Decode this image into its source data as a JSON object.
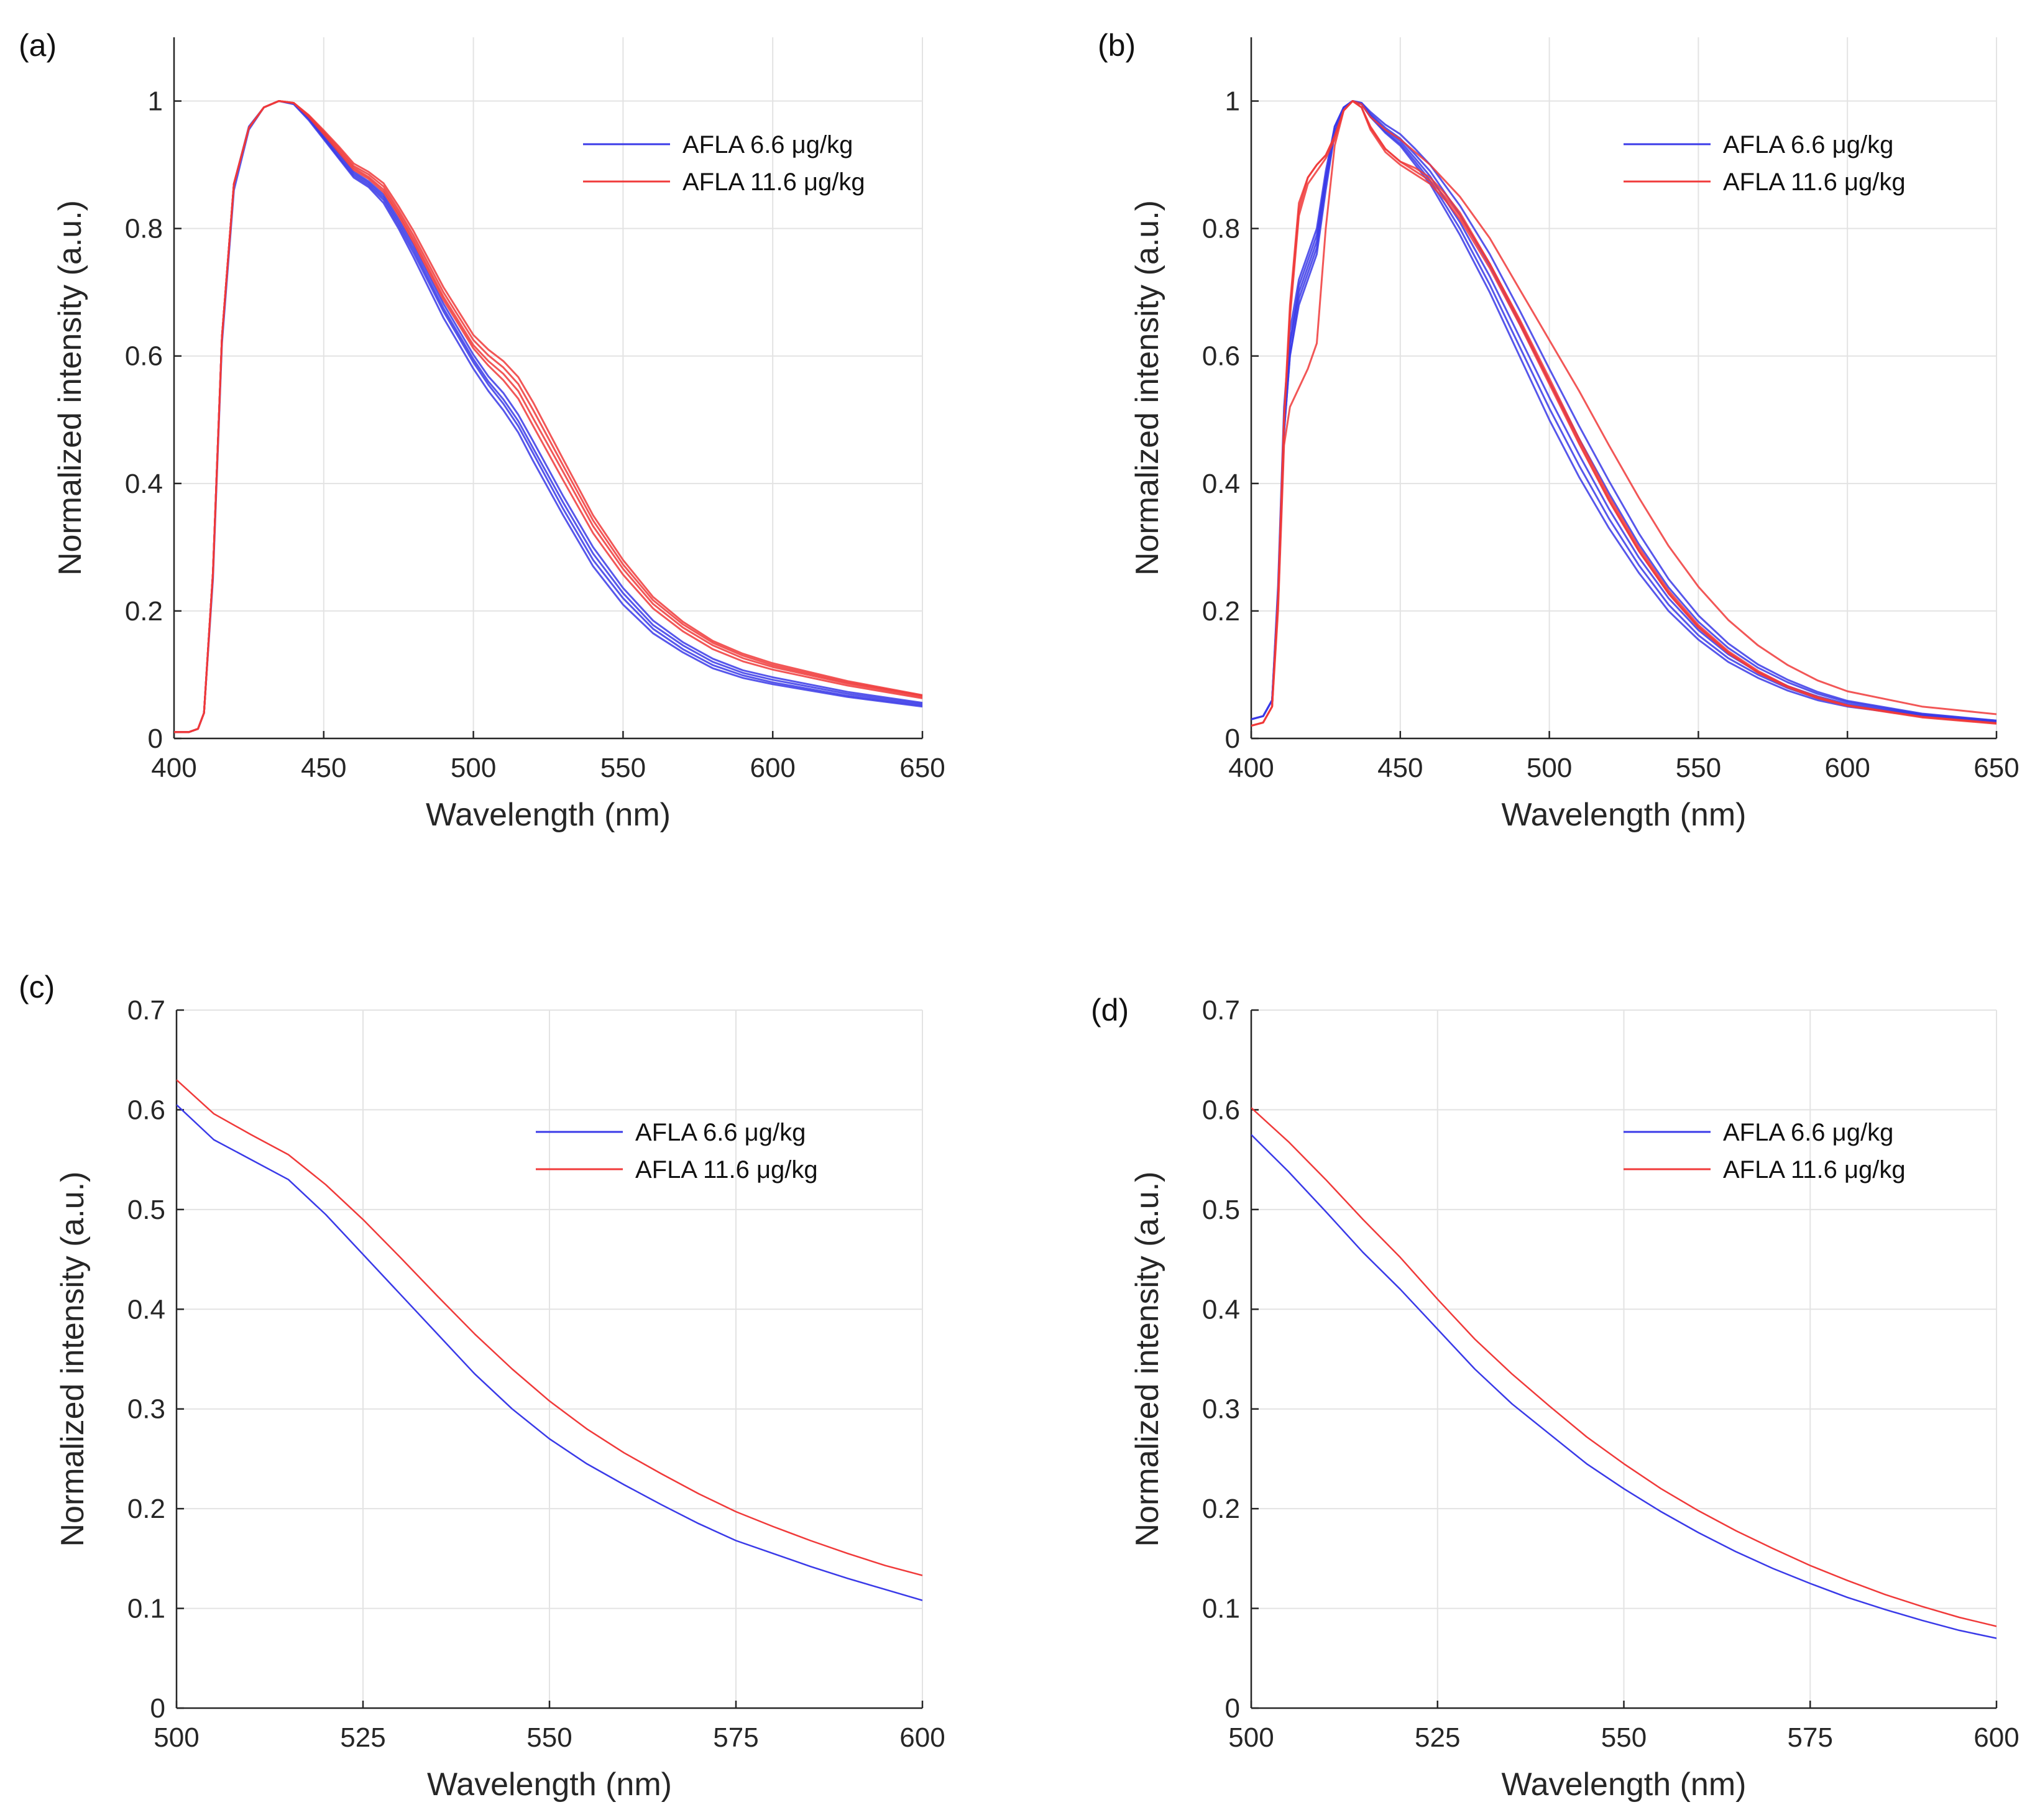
{
  "figure": {
    "description_text": ""
  },
  "colors": {
    "low": "#3a3ae8",
    "high": "#f03a3a",
    "low_bold": "#1c1cd6",
    "high_bold": "#e31a1a",
    "grid": "#e3e3e3",
    "axis": "#262626"
  },
  "legend": {
    "low_label": "AFLA 6.6 μg/kg",
    "high_label": "AFLA 11.6 μg/kg"
  },
  "chart_data": [
    {
      "id": "a",
      "panel_label": "(a)",
      "type": "line",
      "xlabel": "Wavelength (nm)",
      "ylabel": "Normalized intensity (a.u.)",
      "xlim": [
        400,
        650
      ],
      "ylim": [
        0,
        1.1
      ],
      "xticks": [
        400,
        450,
        500,
        550,
        600,
        650
      ],
      "yticks": [
        0,
        0.2,
        0.4,
        0.6,
        0.8,
        1
      ],
      "ytick_labels": [
        "0",
        "0.2",
        "0.4",
        "0.6",
        "0.8",
        "1"
      ],
      "legend_position": "top-right",
      "grid": true,
      "x": [
        400,
        405,
        408,
        410,
        413,
        416,
        420,
        425,
        430,
        435,
        440,
        445,
        450,
        455,
        460,
        465,
        470,
        475,
        480,
        490,
        500,
        505,
        510,
        515,
        520,
        530,
        540,
        550,
        560,
        570,
        580,
        590,
        600,
        625,
        650
      ],
      "series": [
        {
          "name": "AFLA 6.6 μg/kg",
          "group": "low",
          "values": [
            0.01,
            0.01,
            0.015,
            0.04,
            0.25,
            0.62,
            0.86,
            0.955,
            0.99,
            1.0,
            0.995,
            0.97,
            0.94,
            0.91,
            0.88,
            0.865,
            0.84,
            0.8,
            0.755,
            0.66,
            0.58,
            0.545,
            0.515,
            0.48,
            0.435,
            0.35,
            0.27,
            0.21,
            0.165,
            0.135,
            0.11,
            0.095,
            0.085,
            0.065,
            0.05
          ]
        },
        {
          "name": "AFLA 6.6 μg/kg",
          "group": "low",
          "values": [
            0.01,
            0.01,
            0.015,
            0.04,
            0.26,
            0.63,
            0.87,
            0.96,
            0.99,
            1.0,
            0.996,
            0.972,
            0.942,
            0.912,
            0.883,
            0.868,
            0.845,
            0.805,
            0.762,
            0.67,
            0.59,
            0.555,
            0.525,
            0.49,
            0.447,
            0.36,
            0.28,
            0.22,
            0.172,
            0.14,
            0.115,
            0.099,
            0.088,
            0.067,
            0.052
          ]
        },
        {
          "name": "AFLA 6.6 μg/kg",
          "group": "low",
          "values": [
            0.01,
            0.01,
            0.015,
            0.04,
            0.26,
            0.63,
            0.87,
            0.958,
            0.99,
            1.0,
            0.996,
            0.973,
            0.944,
            0.915,
            0.886,
            0.871,
            0.849,
            0.81,
            0.768,
            0.675,
            0.595,
            0.56,
            0.532,
            0.498,
            0.455,
            0.37,
            0.29,
            0.228,
            0.178,
            0.146,
            0.12,
            0.103,
            0.092,
            0.07,
            0.054
          ]
        },
        {
          "name": "AFLA 6.6 μg/kg",
          "group": "low",
          "values": [
            0.01,
            0.01,
            0.015,
            0.04,
            0.26,
            0.63,
            0.87,
            0.958,
            0.99,
            1.0,
            0.996,
            0.974,
            0.946,
            0.918,
            0.889,
            0.874,
            0.853,
            0.815,
            0.774,
            0.682,
            0.602,
            0.568,
            0.542,
            0.508,
            0.466,
            0.38,
            0.3,
            0.236,
            0.185,
            0.151,
            0.125,
            0.107,
            0.096,
            0.073,
            0.056
          ]
        },
        {
          "name": "AFLA 11.6 μg/kg",
          "group": "high",
          "values": [
            0.01,
            0.01,
            0.015,
            0.04,
            0.26,
            0.63,
            0.87,
            0.958,
            0.99,
            1.0,
            0.997,
            0.975,
            0.948,
            0.92,
            0.892,
            0.878,
            0.857,
            0.82,
            0.778,
            0.688,
            0.612,
            0.585,
            0.562,
            0.533,
            0.49,
            0.405,
            0.322,
            0.257,
            0.204,
            0.168,
            0.14,
            0.121,
            0.108,
            0.083,
            0.063
          ]
        },
        {
          "name": "AFLA 11.6 μg/kg",
          "group": "high",
          "values": [
            0.01,
            0.01,
            0.015,
            0.04,
            0.26,
            0.63,
            0.87,
            0.958,
            0.99,
            1.0,
            0.997,
            0.976,
            0.95,
            0.923,
            0.895,
            0.881,
            0.861,
            0.824,
            0.783,
            0.693,
            0.617,
            0.592,
            0.572,
            0.545,
            0.502,
            0.418,
            0.333,
            0.266,
            0.211,
            0.174,
            0.146,
            0.126,
            0.112,
            0.086,
            0.065
          ]
        },
        {
          "name": "AFLA 11.6 μg/kg",
          "group": "high",
          "values": [
            0.01,
            0.01,
            0.015,
            0.04,
            0.26,
            0.63,
            0.87,
            0.958,
            0.99,
            1.0,
            0.997,
            0.977,
            0.952,
            0.926,
            0.898,
            0.885,
            0.866,
            0.829,
            0.789,
            0.7,
            0.625,
            0.601,
            0.582,
            0.556,
            0.515,
            0.428,
            0.342,
            0.273,
            0.217,
            0.179,
            0.15,
            0.13,
            0.115,
            0.088,
            0.067
          ]
        },
        {
          "name": "AFLA 11.6 μg/kg",
          "group": "high",
          "values": [
            0.01,
            0.01,
            0.015,
            0.04,
            0.26,
            0.63,
            0.87,
            0.958,
            0.99,
            1.0,
            0.997,
            0.978,
            0.954,
            0.929,
            0.902,
            0.889,
            0.871,
            0.835,
            0.796,
            0.708,
            0.633,
            0.61,
            0.592,
            0.567,
            0.527,
            0.438,
            0.35,
            0.28,
            0.222,
            0.183,
            0.153,
            0.133,
            0.118,
            0.09,
            0.068
          ]
        }
      ]
    },
    {
      "id": "b",
      "panel_label": "(b)",
      "type": "line",
      "xlabel": "Wavelength (nm)",
      "ylabel": "Normalized intensity (a.u.)",
      "xlim": [
        400,
        650
      ],
      "ylim": [
        0,
        1.1
      ],
      "xticks": [
        400,
        450,
        500,
        550,
        600,
        650
      ],
      "yticks": [
        0,
        0.2,
        0.4,
        0.6,
        0.8,
        1
      ],
      "ytick_labels": [
        "0",
        "0.2",
        "0.4",
        "0.6",
        "0.8",
        "1"
      ],
      "legend_position": "top-right",
      "grid": true,
      "x": [
        400,
        404,
        407,
        409,
        411,
        413,
        416,
        419,
        422,
        425,
        428,
        431,
        434,
        437,
        440,
        445,
        450,
        455,
        460,
        465,
        470,
        480,
        490,
        500,
        510,
        520,
        530,
        540,
        550,
        560,
        570,
        580,
        590,
        600,
        625,
        650
      ],
      "series": [
        {
          "name": "AFLA 6.6 μg/kg",
          "group": "low",
          "values": [
            0.03,
            0.035,
            0.06,
            0.22,
            0.48,
            0.6,
            0.68,
            0.72,
            0.76,
            0.86,
            0.95,
            0.99,
            1.0,
            0.995,
            0.975,
            0.95,
            0.93,
            0.9,
            0.87,
            0.83,
            0.79,
            0.7,
            0.6,
            0.5,
            0.41,
            0.33,
            0.26,
            0.2,
            0.155,
            0.12,
            0.095,
            0.075,
            0.06,
            0.05,
            0.035,
            0.025
          ]
        },
        {
          "name": "AFLA 6.6 μg/kg",
          "group": "low",
          "values": [
            0.03,
            0.035,
            0.06,
            0.22,
            0.48,
            0.6,
            0.69,
            0.73,
            0.77,
            0.87,
            0.95,
            0.99,
            1.0,
            0.995,
            0.976,
            0.952,
            0.933,
            0.905,
            0.875,
            0.838,
            0.8,
            0.712,
            0.615,
            0.518,
            0.428,
            0.345,
            0.272,
            0.21,
            0.162,
            0.126,
            0.1,
            0.079,
            0.063,
            0.052,
            0.036,
            0.026
          ]
        },
        {
          "name": "AFLA 6.6 μg/kg",
          "group": "low",
          "values": [
            0.03,
            0.035,
            0.06,
            0.23,
            0.5,
            0.62,
            0.7,
            0.74,
            0.78,
            0.88,
            0.96,
            0.99,
            1.0,
            0.996,
            0.978,
            0.955,
            0.937,
            0.91,
            0.882,
            0.846,
            0.81,
            0.725,
            0.63,
            0.535,
            0.445,
            0.36,
            0.284,
            0.22,
            0.17,
            0.132,
            0.104,
            0.082,
            0.066,
            0.054,
            0.037,
            0.027
          ]
        },
        {
          "name": "AFLA 6.6 μg/kg",
          "group": "low",
          "values": [
            0.03,
            0.035,
            0.06,
            0.23,
            0.5,
            0.62,
            0.71,
            0.75,
            0.79,
            0.88,
            0.96,
            0.99,
            1.0,
            0.997,
            0.98,
            0.958,
            0.941,
            0.916,
            0.89,
            0.856,
            0.822,
            0.742,
            0.652,
            0.56,
            0.47,
            0.385,
            0.305,
            0.237,
            0.183,
            0.142,
            0.111,
            0.088,
            0.07,
            0.057,
            0.038,
            0.028
          ]
        },
        {
          "name": "AFLA 6.6 μg/kg",
          "group": "low",
          "values": [
            0.03,
            0.035,
            0.06,
            0.24,
            0.52,
            0.64,
            0.72,
            0.76,
            0.8,
            0.89,
            0.96,
            0.99,
            1.0,
            0.997,
            0.983,
            0.963,
            0.948,
            0.925,
            0.9,
            0.868,
            0.836,
            0.76,
            0.672,
            0.58,
            0.49,
            0.404,
            0.322,
            0.25,
            0.193,
            0.149,
            0.116,
            0.092,
            0.073,
            0.059,
            0.039,
            0.028
          ]
        },
        {
          "name": "AFLA 11.6 μg/kg",
          "group": "high",
          "values": [
            0.02,
            0.025,
            0.05,
            0.2,
            0.46,
            0.52,
            0.55,
            0.58,
            0.62,
            0.8,
            0.93,
            0.985,
            1.0,
            0.99,
            0.96,
            0.925,
            0.905,
            0.895,
            0.88,
            0.855,
            0.825,
            0.745,
            0.655,
            0.56,
            0.465,
            0.375,
            0.295,
            0.228,
            0.175,
            0.135,
            0.104,
            0.081,
            0.064,
            0.052,
            0.034,
            0.024
          ]
        },
        {
          "name": "AFLA 11.6 μg/kg",
          "group": "high",
          "values": [
            0.02,
            0.025,
            0.05,
            0.22,
            0.5,
            0.66,
            0.82,
            0.87,
            0.89,
            0.91,
            0.94,
            0.985,
            1.0,
            0.99,
            0.955,
            0.92,
            0.9,
            0.885,
            0.87,
            0.845,
            0.815,
            0.738,
            0.65,
            0.556,
            0.462,
            0.373,
            0.294,
            0.227,
            0.174,
            0.134,
            0.103,
            0.08,
            0.063,
            0.051,
            0.033,
            0.023
          ]
        },
        {
          "name": "AFLA 11.6 μg/kg",
          "group": "high",
          "values": [
            0.02,
            0.025,
            0.05,
            0.22,
            0.5,
            0.68,
            0.84,
            0.88,
            0.9,
            0.915,
            0.945,
            0.985,
            1.0,
            0.99,
            0.958,
            0.925,
            0.905,
            0.89,
            0.875,
            0.85,
            0.82,
            0.745,
            0.658,
            0.565,
            0.47,
            0.38,
            0.3,
            0.232,
            0.178,
            0.137,
            0.106,
            0.082,
            0.065,
            0.052,
            0.034,
            0.024
          ]
        },
        {
          "name": "AFLA 11.6 μg/kg",
          "group": "high",
          "values": [
            0.02,
            0.025,
            0.05,
            0.22,
            0.5,
            0.67,
            0.83,
            0.88,
            0.9,
            0.915,
            0.945,
            0.985,
            1.0,
            0.995,
            0.975,
            0.955,
            0.94,
            0.92,
            0.9,
            0.875,
            0.85,
            0.785,
            0.705,
            0.625,
            0.545,
            0.46,
            0.378,
            0.302,
            0.238,
            0.186,
            0.146,
            0.115,
            0.091,
            0.074,
            0.05,
            0.038
          ]
        }
      ]
    },
    {
      "id": "c",
      "panel_label": "(c)",
      "type": "line",
      "xlabel": "Wavelength (nm)",
      "ylabel": "Normalized intensity (a.u.)",
      "xlim": [
        500,
        600
      ],
      "ylim": [
        0,
        0.7
      ],
      "xticks": [
        500,
        525,
        550,
        575,
        600
      ],
      "yticks": [
        0,
        0.1,
        0.2,
        0.3,
        0.4,
        0.5,
        0.6,
        0.7
      ],
      "ytick_labels": [
        "0",
        "0.1",
        "0.2",
        "0.3",
        "0.4",
        "0.5",
        "0.6",
        "0.7"
      ],
      "legend_position": "top-right",
      "grid": true,
      "x": [
        500,
        505,
        510,
        515,
        520,
        525,
        530,
        535,
        540,
        545,
        550,
        555,
        560,
        565,
        570,
        575,
        580,
        585,
        590,
        595,
        600
      ],
      "series": [
        {
          "name": "AFLA 6.6 μg/kg",
          "group": "low",
          "values": [
            0.605,
            0.57,
            0.55,
            0.53,
            0.495,
            0.455,
            0.415,
            0.375,
            0.335,
            0.3,
            0.27,
            0.245,
            0.224,
            0.204,
            0.185,
            0.168,
            0.155,
            0.142,
            0.13,
            0.119,
            0.108
          ]
        },
        {
          "name": "AFLA 11.6 μg/kg",
          "group": "high",
          "values": [
            0.63,
            0.596,
            0.575,
            0.555,
            0.525,
            0.49,
            0.452,
            0.413,
            0.375,
            0.34,
            0.308,
            0.28,
            0.256,
            0.235,
            0.215,
            0.197,
            0.182,
            0.168,
            0.155,
            0.143,
            0.133
          ]
        }
      ]
    },
    {
      "id": "d",
      "panel_label": "(d)",
      "type": "line",
      "xlabel": "Wavelength (nm)",
      "ylabel": "Normalized intensity (a.u.)",
      "xlim": [
        500,
        600
      ],
      "ylim": [
        0,
        0.7
      ],
      "xticks": [
        500,
        525,
        550,
        575,
        600
      ],
      "yticks": [
        0,
        0.1,
        0.2,
        0.3,
        0.4,
        0.5,
        0.6,
        0.7
      ],
      "ytick_labels": [
        "0",
        "0.1",
        "0.2",
        "0.3",
        "0.4",
        "0.5",
        "0.6",
        "0.7"
      ],
      "legend_position": "top-right",
      "grid": true,
      "x": [
        500,
        505,
        510,
        515,
        520,
        525,
        530,
        535,
        540,
        545,
        550,
        555,
        560,
        565,
        570,
        575,
        580,
        585,
        590,
        595,
        600
      ],
      "series": [
        {
          "name": "AFLA 6.6 μg/kg",
          "group": "low",
          "values": [
            0.575,
            0.538,
            0.498,
            0.457,
            0.42,
            0.38,
            0.34,
            0.305,
            0.275,
            0.245,
            0.22,
            0.197,
            0.176,
            0.157,
            0.14,
            0.125,
            0.111,
            0.099,
            0.088,
            0.078,
            0.07
          ]
        },
        {
          "name": "AFLA 11.6 μg/kg",
          "group": "high",
          "values": [
            0.602,
            0.568,
            0.53,
            0.49,
            0.452,
            0.41,
            0.37,
            0.335,
            0.303,
            0.272,
            0.245,
            0.22,
            0.198,
            0.178,
            0.16,
            0.143,
            0.128,
            0.114,
            0.102,
            0.091,
            0.082
          ]
        }
      ]
    }
  ]
}
